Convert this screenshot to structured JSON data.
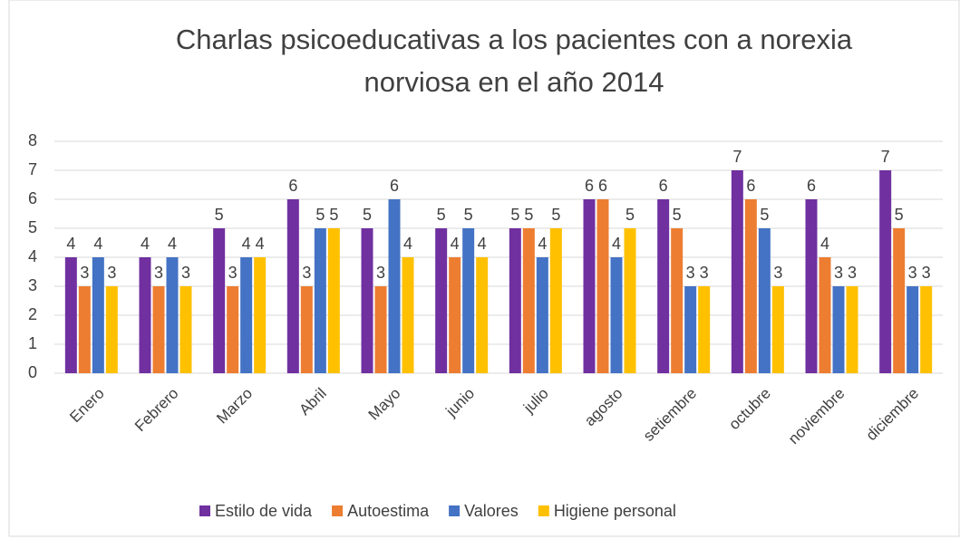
{
  "chart_data": {
    "type": "bar",
    "title": [
      "Charlas psicoeducativas a los pacientes con a norexia",
      "norviosa en el año  2014"
    ],
    "categories": [
      "Enero",
      "Febrero",
      "Marzo",
      "Abril",
      "Mayo",
      "junio",
      "julio",
      "agosto",
      "setiembre",
      "octubre",
      "noviembre",
      "diciembre"
    ],
    "series": [
      {
        "name": "Estilo de vida",
        "color": "#7030a0",
        "values": [
          4,
          4,
          5,
          6,
          5,
          5,
          5,
          6,
          6,
          7,
          6,
          7
        ]
      },
      {
        "name": "Autoestima",
        "color": "#ed7d31",
        "values": [
          3,
          3,
          3,
          3,
          3,
          4,
          5,
          6,
          5,
          6,
          4,
          5
        ]
      },
      {
        "name": "Valores",
        "color": "#4472c4",
        "values": [
          4,
          4,
          4,
          5,
          6,
          5,
          4,
          4,
          3,
          5,
          3,
          3
        ]
      },
      {
        "name": "Higiene personal",
        "color": "#ffc000",
        "values": [
          3,
          3,
          4,
          5,
          4,
          4,
          5,
          5,
          3,
          3,
          3,
          3
        ]
      }
    ],
    "ylim": [
      0,
      8
    ],
    "yticks": [
      0,
      1,
      2,
      3,
      4,
      5,
      6,
      7,
      8
    ],
    "grid": true,
    "legend": "bottom"
  }
}
